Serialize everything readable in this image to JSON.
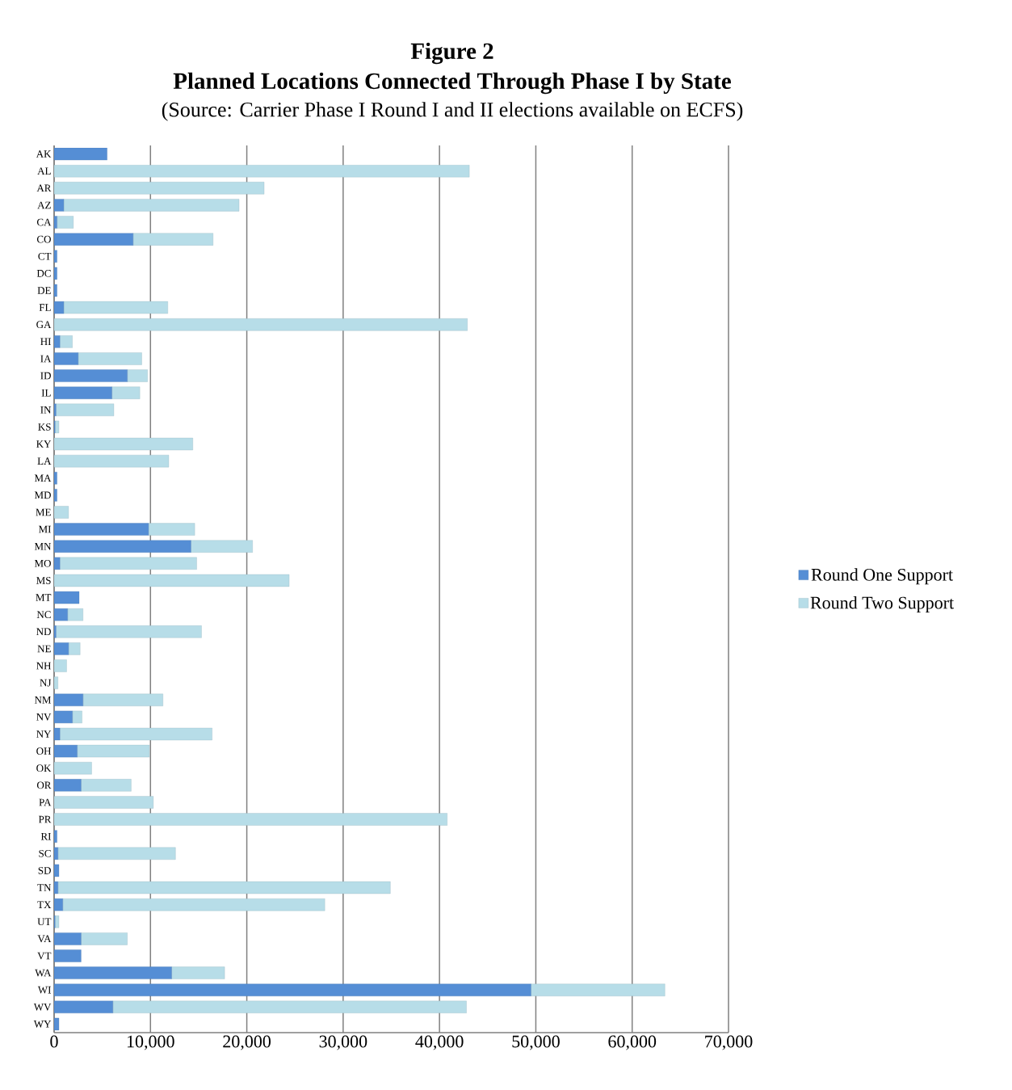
{
  "chart_data": {
    "type": "bar",
    "orientation": "horizontal",
    "stacked": true,
    "title": "Figure 2",
    "subtitle": "Planned Locations Connected Through Phase I by State",
    "annotations": [
      "(Source: Carrier Phase I Round I and II elections available on ECFS)"
    ],
    "categories": [
      "AK",
      "AL",
      "AR",
      "AZ",
      "CA",
      "CO",
      "CT",
      "DC",
      "DE",
      "FL",
      "GA",
      "HI",
      "IA",
      "ID",
      "IL",
      "IN",
      "KS",
      "KY",
      "LA",
      "MA",
      "MD",
      "ME",
      "MI",
      "MN",
      "MO",
      "MS",
      "MT",
      "NC",
      "ND",
      "NE",
      "NH",
      "NJ",
      "NM",
      "NV",
      "NY",
      "OH",
      "OK",
      "OR",
      "PA",
      "PR",
      "RI",
      "SC",
      "SD",
      "TN",
      "TX",
      "UT",
      "VA",
      "VT",
      "WA",
      "WI",
      "WV",
      "WY"
    ],
    "series": [
      {
        "name": "Round One Support",
        "color": "#558ed5",
        "values": [
          5500,
          0,
          0,
          1000,
          300,
          8200,
          300,
          300,
          300,
          1000,
          0,
          600,
          2500,
          7600,
          6000,
          200,
          100,
          0,
          0,
          300,
          300,
          0,
          9800,
          14200,
          600,
          0,
          2600,
          1400,
          200,
          1500,
          0,
          0,
          3000,
          1900,
          600,
          2400,
          0,
          2800,
          0,
          0,
          300,
          400,
          500,
          400,
          900,
          100,
          2800,
          2800,
          12200,
          49500,
          6100,
          500
        ]
      },
      {
        "name": "Round Two Support",
        "color": "#b7dde8",
        "values": [
          0,
          43100,
          21800,
          18200,
          1700,
          8300,
          0,
          0,
          0,
          10800,
          42900,
          1300,
          6600,
          2100,
          2900,
          6000,
          400,
          14400,
          11900,
          0,
          0,
          1500,
          4800,
          6400,
          14200,
          24400,
          0,
          1600,
          15100,
          1200,
          1300,
          400,
          8300,
          1000,
          15800,
          7500,
          3900,
          5200,
          10300,
          40800,
          0,
          12200,
          0,
          34500,
          27200,
          400,
          4800,
          0,
          5500,
          13900,
          36700,
          0
        ]
      }
    ],
    "xlim": [
      0,
      70000
    ],
    "xticks": [
      {
        "value": 0,
        "label": "0"
      },
      {
        "value": 10000,
        "label": "10,000"
      },
      {
        "value": 20000,
        "label": "20,000"
      },
      {
        "value": 30000,
        "label": "30,000"
      },
      {
        "value": 40000,
        "label": "40,000"
      },
      {
        "value": 50000,
        "label": "50,000"
      },
      {
        "value": 60000,
        "label": "60,000"
      },
      {
        "value": 70000,
        "label": "70,000"
      }
    ],
    "grid": "x",
    "legend": "right"
  }
}
